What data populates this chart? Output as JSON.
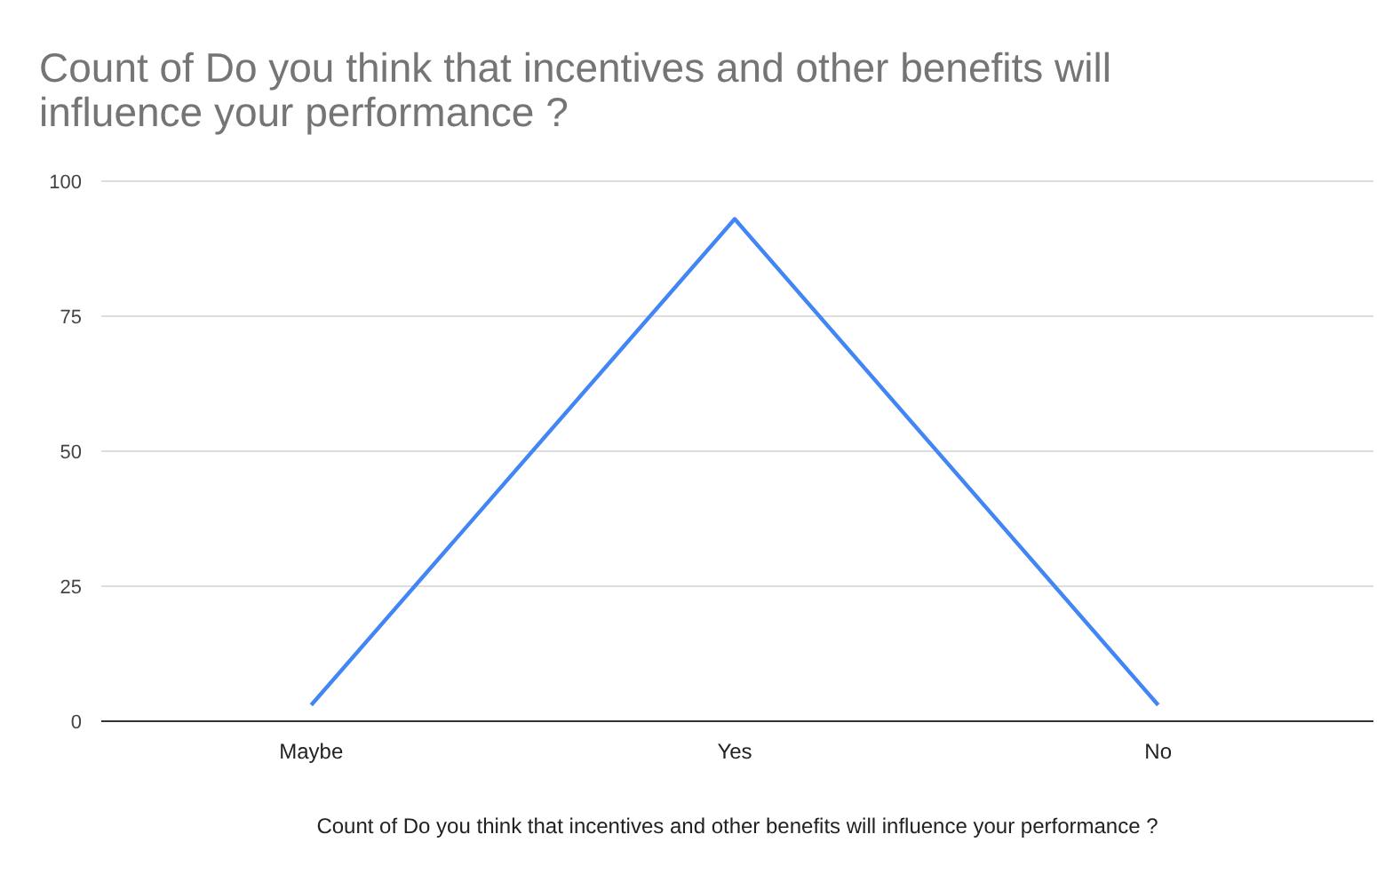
{
  "chart_data": {
    "type": "line",
    "title": "Count of Do you think that incentives and other benefits will influence your performance ?",
    "xlabel": "Count of Do you think that incentives and other benefits will influence your performance ?",
    "categories": [
      "Maybe",
      "Yes",
      "No"
    ],
    "series": [
      {
        "color": "#4285f4",
        "values": [
          3,
          93,
          3
        ]
      }
    ],
    "ylim": [
      0,
      100
    ],
    "yticks": [
      0,
      25,
      50,
      75,
      100
    ],
    "grid": "y",
    "marker": "none",
    "line_style": "solid"
  }
}
